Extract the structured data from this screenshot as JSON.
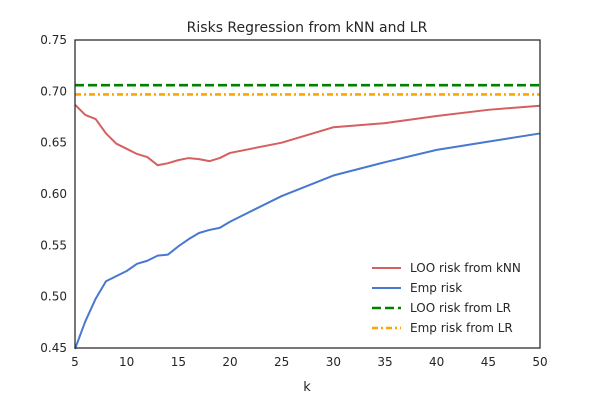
{
  "chart_data": {
    "type": "line",
    "title": "Risks Regression from kNN and LR",
    "xlabel": "k",
    "ylabel": "",
    "xlim": [
      5,
      50
    ],
    "ylim": [
      0.45,
      0.75
    ],
    "xticks": [
      "5",
      "10",
      "15",
      "20",
      "25",
      "30",
      "35",
      "40",
      "45",
      "50"
    ],
    "yticks": [
      "0.45",
      "0.50",
      "0.55",
      "0.60",
      "0.65",
      "0.70",
      "0.75"
    ],
    "grid": false,
    "legend_position": "lower-right",
    "series": [
      {
        "name": "LOO risk from kNN",
        "color": "#d65f5f",
        "style": "solid",
        "x": [
          5,
          6,
          7,
          8,
          9,
          10,
          11,
          12,
          13,
          14,
          15,
          16,
          17,
          18,
          19,
          20,
          25,
          30,
          35,
          40,
          45,
          50
        ],
        "y": [
          0.687,
          0.677,
          0.673,
          0.659,
          0.649,
          0.644,
          0.639,
          0.636,
          0.628,
          0.63,
          0.633,
          0.635,
          0.634,
          0.632,
          0.635,
          0.64,
          0.65,
          0.665,
          0.669,
          0.676,
          0.682,
          0.686
        ]
      },
      {
        "name": "Emp risk",
        "color": "#4878cf",
        "style": "solid",
        "x": [
          5,
          6,
          7,
          8,
          9,
          10,
          11,
          12,
          13,
          14,
          15,
          16,
          17,
          18,
          19,
          20,
          25,
          30,
          35,
          40,
          45,
          50
        ],
        "y": [
          0.449,
          0.476,
          0.498,
          0.515,
          0.52,
          0.525,
          0.532,
          0.535,
          0.54,
          0.541,
          0.549,
          0.556,
          0.562,
          0.565,
          0.567,
          0.573,
          0.598,
          0.618,
          0.631,
          0.643,
          0.651,
          0.659
        ]
      },
      {
        "name": "LOO risk from LR",
        "color": "#008000",
        "style": "dashed",
        "x": [
          5,
          50
        ],
        "y": [
          0.706,
          0.706
        ]
      },
      {
        "name": "Emp risk from LR",
        "color": "#ffa500",
        "style": "dashdot",
        "x": [
          5,
          50
        ],
        "y": [
          0.697,
          0.697
        ]
      }
    ]
  }
}
